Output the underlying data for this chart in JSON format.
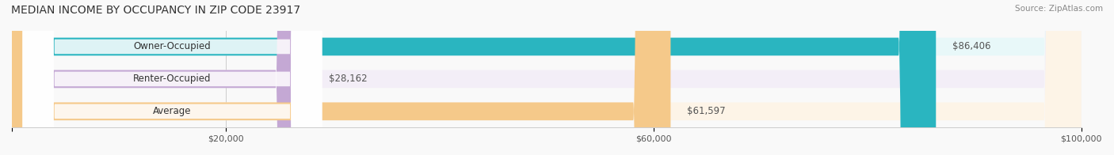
{
  "title": "MEDIAN INCOME BY OCCUPANCY IN ZIP CODE 23917",
  "source": "Source: ZipAtlas.com",
  "categories": [
    "Owner-Occupied",
    "Renter-Occupied",
    "Average"
  ],
  "values": [
    86406,
    28162,
    61597
  ],
  "labels": [
    "$86,406",
    "$28,162",
    "$61,597"
  ],
  "bar_colors": [
    "#2ab5c0",
    "#c4a8d4",
    "#f5c98a"
  ],
  "bar_bg_colors": [
    "#e8f8f9",
    "#f3eef7",
    "#fdf4e7"
  ],
  "xlim": [
    0,
    100000
  ],
  "xticks": [
    0,
    20000,
    60000,
    100000
  ],
  "xticklabels": [
    "",
    "$20,000",
    "$60,000",
    "$100,000"
  ],
  "bar_height": 0.55,
  "figsize": [
    14.06,
    1.96
  ],
  "dpi": 100,
  "title_fontsize": 10,
  "label_fontsize": 8.5,
  "tick_fontsize": 8,
  "source_fontsize": 7.5,
  "background_color": "#f9f9f9"
}
